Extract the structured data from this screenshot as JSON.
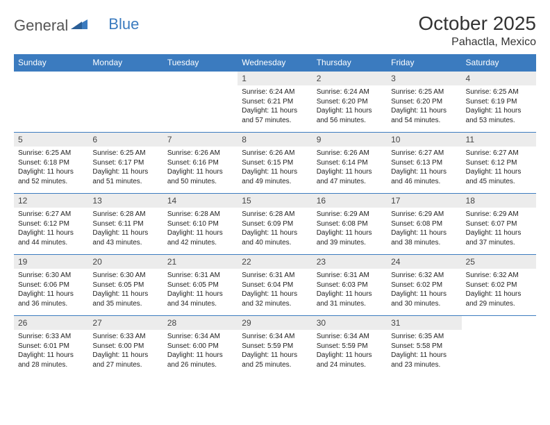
{
  "logo": {
    "text1": "General",
    "text2": "Blue"
  },
  "title": "October 2025",
  "location": "Pahactla, Mexico",
  "colors": {
    "header_bg": "#3b7bbf",
    "daynum_bg": "#ececec",
    "border": "#3b7bbf"
  },
  "weekdays": [
    "Sunday",
    "Monday",
    "Tuesday",
    "Wednesday",
    "Thursday",
    "Friday",
    "Saturday"
  ],
  "first_weekday_index": 3,
  "days": [
    {
      "n": "1",
      "sr": "6:24 AM",
      "ss": "6:21 PM",
      "dl": "11 hours and 57 minutes."
    },
    {
      "n": "2",
      "sr": "6:24 AM",
      "ss": "6:20 PM",
      "dl": "11 hours and 56 minutes."
    },
    {
      "n": "3",
      "sr": "6:25 AM",
      "ss": "6:20 PM",
      "dl": "11 hours and 54 minutes."
    },
    {
      "n": "4",
      "sr": "6:25 AM",
      "ss": "6:19 PM",
      "dl": "11 hours and 53 minutes."
    },
    {
      "n": "5",
      "sr": "6:25 AM",
      "ss": "6:18 PM",
      "dl": "11 hours and 52 minutes."
    },
    {
      "n": "6",
      "sr": "6:25 AM",
      "ss": "6:17 PM",
      "dl": "11 hours and 51 minutes."
    },
    {
      "n": "7",
      "sr": "6:26 AM",
      "ss": "6:16 PM",
      "dl": "11 hours and 50 minutes."
    },
    {
      "n": "8",
      "sr": "6:26 AM",
      "ss": "6:15 PM",
      "dl": "11 hours and 49 minutes."
    },
    {
      "n": "9",
      "sr": "6:26 AM",
      "ss": "6:14 PM",
      "dl": "11 hours and 47 minutes."
    },
    {
      "n": "10",
      "sr": "6:27 AM",
      "ss": "6:13 PM",
      "dl": "11 hours and 46 minutes."
    },
    {
      "n": "11",
      "sr": "6:27 AM",
      "ss": "6:12 PM",
      "dl": "11 hours and 45 minutes."
    },
    {
      "n": "12",
      "sr": "6:27 AM",
      "ss": "6:12 PM",
      "dl": "11 hours and 44 minutes."
    },
    {
      "n": "13",
      "sr": "6:28 AM",
      "ss": "6:11 PM",
      "dl": "11 hours and 43 minutes."
    },
    {
      "n": "14",
      "sr": "6:28 AM",
      "ss": "6:10 PM",
      "dl": "11 hours and 42 minutes."
    },
    {
      "n": "15",
      "sr": "6:28 AM",
      "ss": "6:09 PM",
      "dl": "11 hours and 40 minutes."
    },
    {
      "n": "16",
      "sr": "6:29 AM",
      "ss": "6:08 PM",
      "dl": "11 hours and 39 minutes."
    },
    {
      "n": "17",
      "sr": "6:29 AM",
      "ss": "6:08 PM",
      "dl": "11 hours and 38 minutes."
    },
    {
      "n": "18",
      "sr": "6:29 AM",
      "ss": "6:07 PM",
      "dl": "11 hours and 37 minutes."
    },
    {
      "n": "19",
      "sr": "6:30 AM",
      "ss": "6:06 PM",
      "dl": "11 hours and 36 minutes."
    },
    {
      "n": "20",
      "sr": "6:30 AM",
      "ss": "6:05 PM",
      "dl": "11 hours and 35 minutes."
    },
    {
      "n": "21",
      "sr": "6:31 AM",
      "ss": "6:05 PM",
      "dl": "11 hours and 34 minutes."
    },
    {
      "n": "22",
      "sr": "6:31 AM",
      "ss": "6:04 PM",
      "dl": "11 hours and 32 minutes."
    },
    {
      "n": "23",
      "sr": "6:31 AM",
      "ss": "6:03 PM",
      "dl": "11 hours and 31 minutes."
    },
    {
      "n": "24",
      "sr": "6:32 AM",
      "ss": "6:02 PM",
      "dl": "11 hours and 30 minutes."
    },
    {
      "n": "25",
      "sr": "6:32 AM",
      "ss": "6:02 PM",
      "dl": "11 hours and 29 minutes."
    },
    {
      "n": "26",
      "sr": "6:33 AM",
      "ss": "6:01 PM",
      "dl": "11 hours and 28 minutes."
    },
    {
      "n": "27",
      "sr": "6:33 AM",
      "ss": "6:00 PM",
      "dl": "11 hours and 27 minutes."
    },
    {
      "n": "28",
      "sr": "6:34 AM",
      "ss": "6:00 PM",
      "dl": "11 hours and 26 minutes."
    },
    {
      "n": "29",
      "sr": "6:34 AM",
      "ss": "5:59 PM",
      "dl": "11 hours and 25 minutes."
    },
    {
      "n": "30",
      "sr": "6:34 AM",
      "ss": "5:59 PM",
      "dl": "11 hours and 24 minutes."
    },
    {
      "n": "31",
      "sr": "6:35 AM",
      "ss": "5:58 PM",
      "dl": "11 hours and 23 minutes."
    }
  ],
  "labels": {
    "sunrise": "Sunrise:",
    "sunset": "Sunset:",
    "daylight": "Daylight:"
  }
}
